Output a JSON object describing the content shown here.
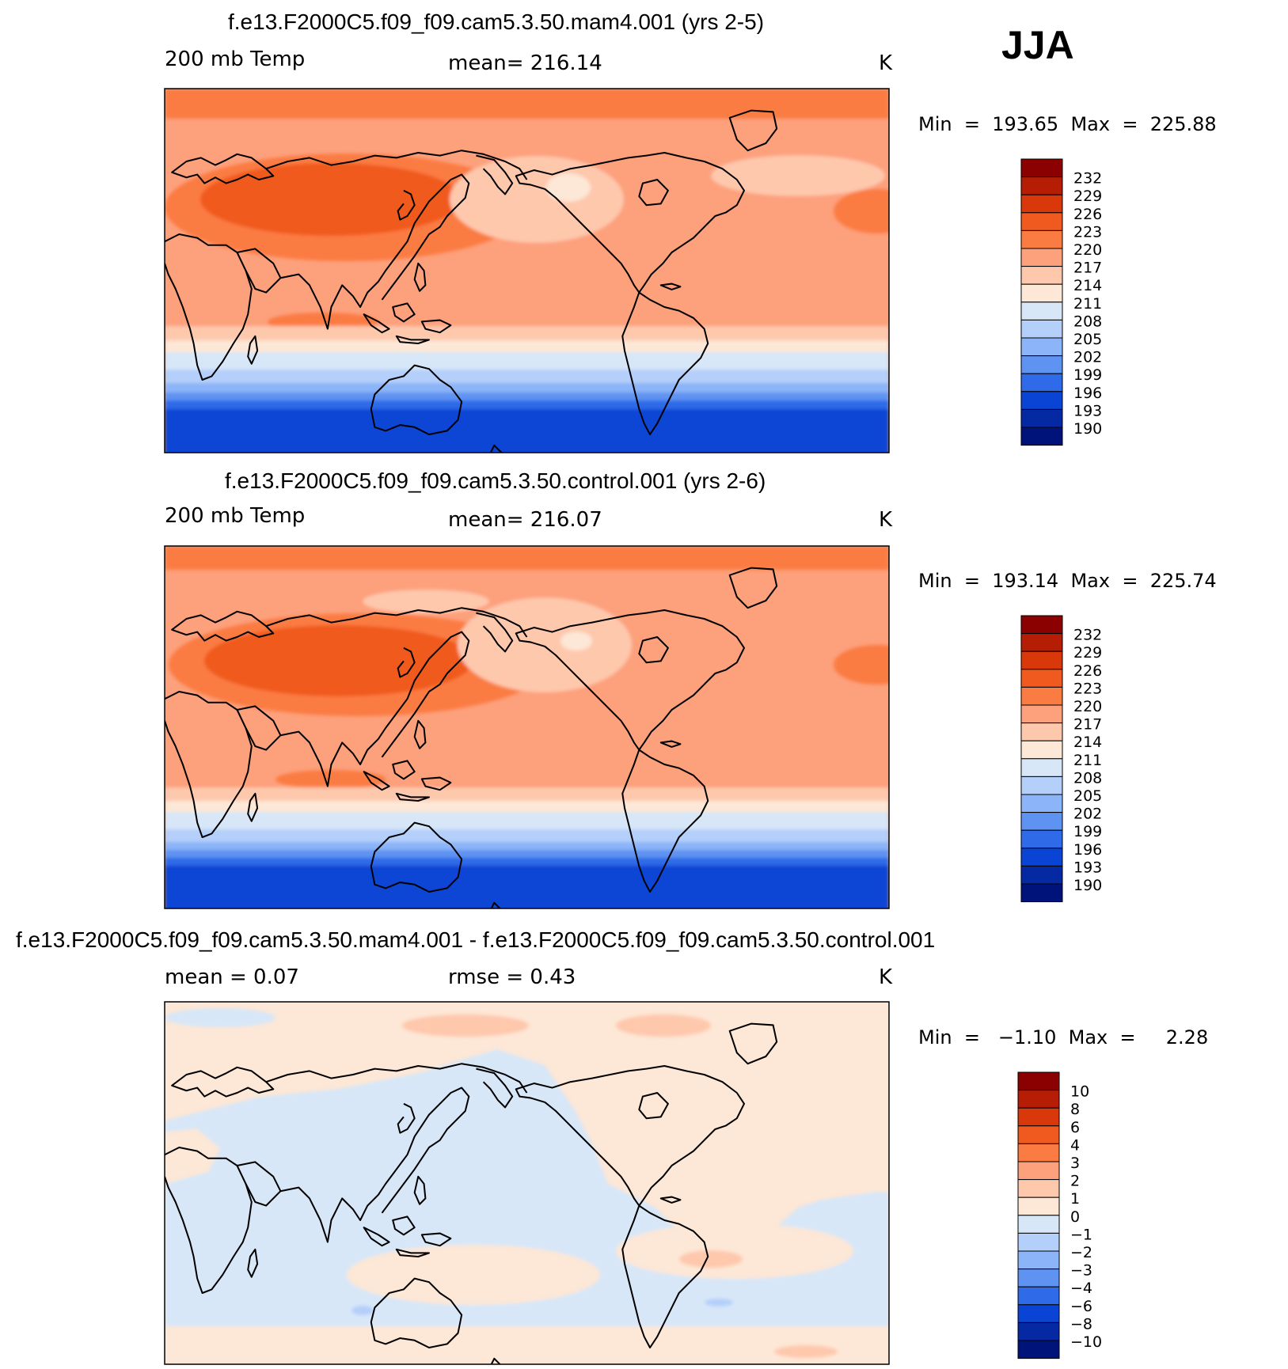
{
  "season": "JJA",
  "panels": [
    {
      "title": "f.e13.F2000C5.f09_f09.cam5.3.50.mam4.001 (yrs 2-5)",
      "left_label": "200 mb Temp",
      "center_label": "mean=  216.14",
      "units": "K",
      "minmax": "Min  =  193.65  Max  =  225.88",
      "colorbar_labels": [
        "232",
        "229",
        "226",
        "223",
        "220",
        "217",
        "214",
        "211",
        "208",
        "205",
        "202",
        "199",
        "196",
        "193",
        "190"
      ]
    },
    {
      "title": "f.e13.F2000C5.f09_f09.cam5.3.50.control.001 (yrs 2-6)",
      "left_label": "200 mb Temp",
      "center_label": "mean=  216.07",
      "units": "K",
      "minmax": "Min  =  193.14  Max  =  225.74",
      "colorbar_labels": [
        "232",
        "229",
        "226",
        "223",
        "220",
        "217",
        "214",
        "211",
        "208",
        "205",
        "202",
        "199",
        "196",
        "193",
        "190"
      ]
    },
    {
      "title": "f.e13.F2000C5.f09_f09.cam5.3.50.mam4.001 - f.e13.F2000C5.f09_f09.cam5.3.50.control.001",
      "left_label": "mean  =     0.07",
      "center_label": "rmse  =     0.43",
      "units": "K",
      "minmax": "Min  =   −1.10  Max  =     2.28",
      "colorbar_labels": [
        "10",
        "8",
        "6",
        "4",
        "3",
        "2",
        "1",
        "0",
        "−1",
        "−2",
        "−3",
        "−4",
        "−6",
        "−8",
        "−10"
      ]
    }
  ],
  "colormap": [
    "#8b0000",
    "#b51e04",
    "#d8380a",
    "#f05a1e",
    "#fb7c42",
    "#fda07c",
    "#fec8ad",
    "#fde7d6",
    "#d7e7f8",
    "#b4cffa",
    "#8cb4f8",
    "#5e93f2",
    "#2f6be8",
    "#0a44d4",
    "#0529a3",
    "#00137a"
  ],
  "chart_data": [
    {
      "type": "heatmap",
      "title": "f.e13.F2000C5.f09_f09.cam5.3.50.mam4.001 (yrs 2-5)",
      "variable": "200 mb Temp",
      "units": "K",
      "mean": 216.14,
      "min": 193.65,
      "max": 225.88,
      "levels": [
        190,
        193,
        196,
        199,
        202,
        205,
        208,
        211,
        214,
        217,
        220,
        223,
        226,
        229,
        232
      ]
    },
    {
      "type": "heatmap",
      "title": "f.e13.F2000C5.f09_f09.cam5.3.50.control.001 (yrs 2-6)",
      "variable": "200 mb Temp",
      "units": "K",
      "mean": 216.07,
      "min": 193.14,
      "max": 225.74,
      "levels": [
        190,
        193,
        196,
        199,
        202,
        205,
        208,
        211,
        214,
        217,
        220,
        223,
        226,
        229,
        232
      ]
    },
    {
      "type": "heatmap",
      "title": "f.e13.F2000C5.f09_f09.cam5.3.50.mam4.001 - f.e13.F2000C5.f09_f09.cam5.3.50.control.001",
      "units": "K",
      "mean": 0.07,
      "rmse": 0.43,
      "min": -1.1,
      "max": 2.28,
      "levels": [
        -10,
        -8,
        -6,
        -4,
        -3,
        -2,
        -1,
        0,
        1,
        2,
        3,
        4,
        6,
        8,
        10
      ]
    }
  ]
}
